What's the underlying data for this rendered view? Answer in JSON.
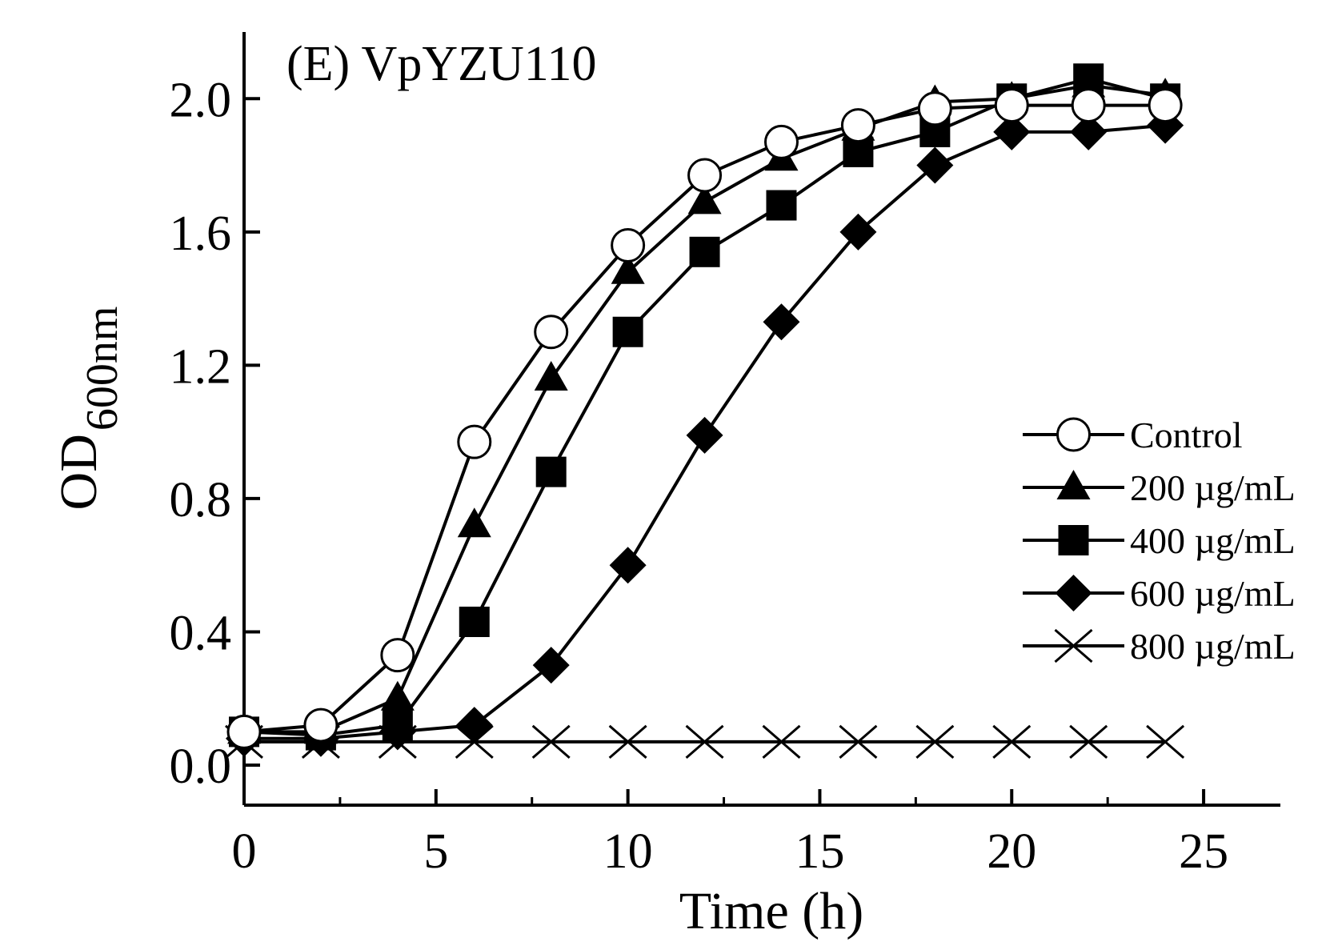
{
  "chart_data": {
    "type": "line",
    "title": "(E) VpYZU110",
    "xlabel": "Time (h)",
    "ylabel_main": "OD",
    "ylabel_sub": "600nm",
    "xlim": [
      0,
      27
    ],
    "ylim": [
      -0.12,
      2.2
    ],
    "x_ticks": [
      0,
      5,
      10,
      15,
      20,
      25
    ],
    "y_ticks": [
      0.0,
      0.4,
      0.8,
      1.2,
      1.6,
      2.0
    ],
    "x_tick_labels": [
      "0",
      "5",
      "10",
      "15",
      "20",
      "25"
    ],
    "y_tick_labels": [
      "0.0",
      "0.4",
      "0.8",
      "1.2",
      "1.6",
      "2.0"
    ],
    "x": [
      0,
      2,
      4,
      6,
      8,
      10,
      12,
      14,
      16,
      18,
      20,
      22,
      24
    ],
    "legend_position": "right",
    "series": [
      {
        "name": "Control",
        "marker": "open-circle",
        "values": [
          0.1,
          0.12,
          0.33,
          0.97,
          1.3,
          1.56,
          1.77,
          1.87,
          1.92,
          1.97,
          1.98,
          1.98,
          1.98
        ]
      },
      {
        "name": "200 µg/mL",
        "marker": "filled-triangle",
        "values": [
          0.1,
          0.1,
          0.2,
          0.72,
          1.16,
          1.48,
          1.69,
          1.82,
          1.91,
          1.99,
          2.0,
          2.04,
          2.01
        ]
      },
      {
        "name": "400 µg/mL",
        "marker": "filled-square",
        "values": [
          0.1,
          0.09,
          0.12,
          0.43,
          0.88,
          1.3,
          1.54,
          1.68,
          1.84,
          1.9,
          2.0,
          2.06,
          2.0
        ]
      },
      {
        "name": "600 µg/mL",
        "marker": "filled-diamond",
        "values": [
          0.08,
          0.08,
          0.1,
          0.12,
          0.3,
          0.6,
          0.99,
          1.33,
          1.6,
          1.8,
          1.9,
          1.9,
          1.92
        ]
      },
      {
        "name": "800 µg/mL",
        "marker": "cross",
        "values": [
          0.07,
          0.07,
          0.07,
          0.07,
          0.07,
          0.07,
          0.07,
          0.07,
          0.07,
          0.07,
          0.07,
          0.07,
          0.07
        ]
      }
    ]
  }
}
